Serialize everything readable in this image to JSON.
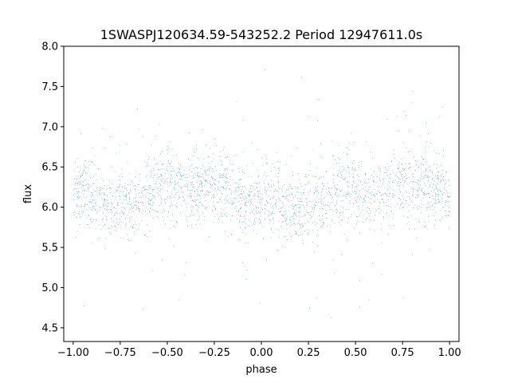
{
  "chart_data": {
    "type": "scatter",
    "title": "1SWASPJ120634.59-543252.2 Period 12947611.0s",
    "xlabel": "phase",
    "ylabel": "flux",
    "xlim": [
      -1.05,
      1.05
    ],
    "ylim": [
      4.33,
      8.0
    ],
    "xticks": [
      -1.0,
      -0.75,
      -0.5,
      -0.25,
      0.0,
      0.25,
      0.5,
      0.75,
      1.0
    ],
    "xtick_labels": [
      "−1.00",
      "−0.75",
      "−0.50",
      "−0.25",
      "0.00",
      "0.25",
      "0.50",
      "0.75",
      "1.00"
    ],
    "yticks": [
      4.5,
      5.0,
      5.5,
      6.0,
      6.5,
      7.0,
      7.5,
      8.0
    ],
    "ytick_labels": [
      "4.5",
      "5.0",
      "5.5",
      "6.0",
      "6.5",
      "7.0",
      "7.5",
      "8.0"
    ],
    "grid": false,
    "marker_color": "#1f77b4",
    "series": [
      {
        "x_range": [
          -1.0,
          1.0
        ],
        "n_points": 22000,
        "flux_median": 6.1,
        "flux_core_range": [
          5.6,
          6.6
        ],
        "flux_full_range": [
          4.5,
          7.8
        ],
        "x": [
          -0.98,
          -0.9,
          -0.82,
          -0.75,
          -0.66,
          -0.6,
          -0.5,
          -0.45,
          -0.38,
          -0.28,
          -0.2,
          -0.1,
          -0.02,
          0.02,
          0.1,
          0.18,
          0.25,
          0.35,
          0.42,
          0.5,
          0.58,
          0.65,
          0.72,
          0.8,
          0.9,
          0.98
        ],
        "y": [
          6.2,
          6.15,
          6.0,
          6.05,
          6.0,
          6.2,
          6.3,
          6.25,
          6.2,
          6.3,
          6.25,
          6.1,
          6.05,
          6.1,
          6.05,
          5.95,
          6.05,
          6.1,
          6.25,
          6.25,
          6.2,
          6.1,
          6.3,
          6.2,
          6.25,
          6.2
        ]
      }
    ]
  }
}
